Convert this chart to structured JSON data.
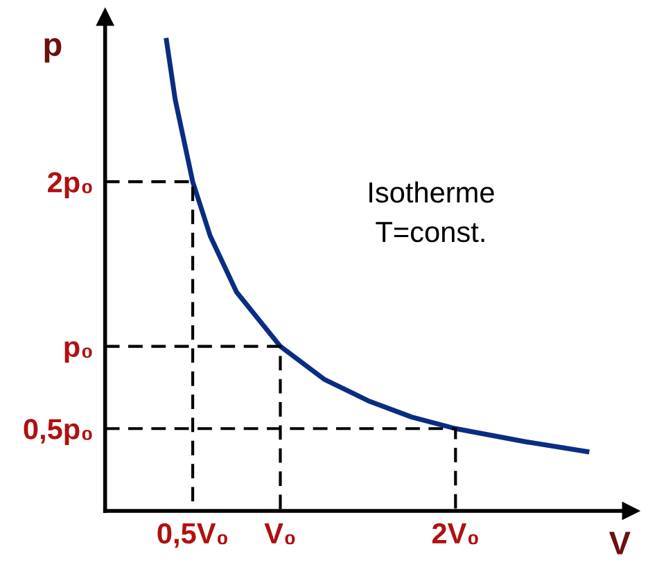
{
  "chart_data": {
    "type": "line",
    "xlabel": "V",
    "ylabel": "p",
    "xlim": [
      0,
      3.0
    ],
    "ylim": [
      0,
      3.0
    ],
    "xticks": [
      {
        "value": 0.5,
        "label": "0,5V₀"
      },
      {
        "value": 1,
        "label": "V₀"
      },
      {
        "value": 2,
        "label": "2V₀"
      }
    ],
    "yticks": [
      {
        "value": 0.5,
        "label": "0,5p₀"
      },
      {
        "value": 1,
        "label": "p₀"
      },
      {
        "value": 2,
        "label": "2p₀"
      }
    ],
    "grid": false,
    "marker": "none",
    "series": [
      {
        "color": "#0a2d82",
        "line_style": "solid",
        "x": [
          0.35,
          0.4,
          0.5,
          0.6,
          0.75,
          1,
          1.25,
          1.5,
          1.75,
          2,
          2.4,
          2.75
        ],
        "values": [
          2.86,
          2.5,
          2,
          1.67,
          1.33,
          1,
          0.8,
          0.67,
          0.57,
          0.5,
          0.42,
          0.36
        ]
      },
      {
        "color": "#000000",
        "line_style": "dashed",
        "x": [
          0,
          0.5,
          0.5
        ],
        "values": [
          2,
          2,
          0
        ]
      },
      {
        "color": "#000000",
        "line_style": "dashed",
        "x": [
          0,
          1,
          1
        ],
        "values": [
          1,
          1,
          0
        ]
      },
      {
        "color": "#000000",
        "line_style": "dashed",
        "x": [
          0,
          2,
          2
        ],
        "values": [
          0.5,
          0.5,
          0
        ]
      }
    ],
    "annotations": [
      "Isotherme\nT=const."
    ]
  }
}
